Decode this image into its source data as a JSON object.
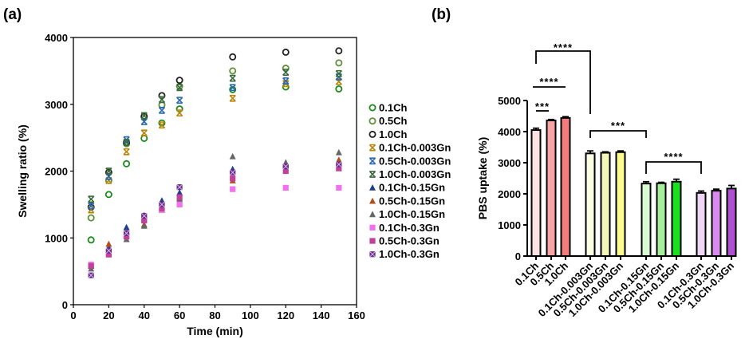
{
  "panels": {
    "a": "(a)",
    "b": "(b)"
  },
  "chart_data": [
    {
      "type": "scatter",
      "xlabel": "Time (min)",
      "ylabel": "Swelling ratio (%)",
      "xlim": [
        0,
        160
      ],
      "ylim": [
        0,
        4000
      ],
      "xticks": [
        0,
        20,
        40,
        60,
        80,
        100,
        120,
        140,
        160
      ],
      "yticks": [
        0,
        1000,
        2000,
        3000,
        4000
      ],
      "grid": false,
      "legend_position": "right",
      "x": [
        10,
        20,
        30,
        40,
        50,
        60,
        90,
        120,
        150
      ],
      "series": [
        {
          "name": "0.1Ch",
          "marker": "open-circle",
          "color": "#1a8a1a",
          "values": [
            970,
            1650,
            2110,
            2490,
            2720,
            2930,
            3220,
            3260,
            3230
          ]
        },
        {
          "name": "0.5Ch",
          "marker": "open-circle",
          "color": "#5f8f3a",
          "values": [
            1300,
            1860,
            2410,
            2810,
            2990,
            3270,
            3500,
            3540,
            3620
          ]
        },
        {
          "name": "1.0Ch",
          "marker": "open-circle",
          "color": "#222222",
          "values": [
            1460,
            1980,
            2430,
            2820,
            3130,
            3360,
            3710,
            3780,
            3800
          ]
        },
        {
          "name": "0.1Ch-0.003Gn",
          "marker": "x",
          "color": "#b8860b",
          "values": [
            1420,
            1860,
            2290,
            2570,
            2690,
            2870,
            3090,
            3310,
            3340
          ]
        },
        {
          "name": "0.5Ch-0.003Gn",
          "marker": "x",
          "color": "#2a6ab0",
          "values": [
            1480,
            1920,
            2470,
            2740,
            2910,
            3060,
            3250,
            3350,
            3410
          ]
        },
        {
          "name": "1.0Ch-0.003Gn",
          "marker": "x",
          "color": "#3a6a3a",
          "values": [
            1580,
            2000,
            2430,
            2830,
            3070,
            3250,
            3390,
            3480,
            3460
          ]
        },
        {
          "name": "0.1Ch-0.15Gn",
          "marker": "triangle",
          "color": "#1f3f8a",
          "values": [
            580,
            860,
            1160,
            1340,
            1560,
            1680,
            2030,
            2090,
            2110
          ]
        },
        {
          "name": "0.5Ch-0.15Gn",
          "marker": "triangle",
          "color": "#b0501a",
          "values": [
            600,
            910,
            1040,
            1200,
            1420,
            1600,
            1860,
            2110,
            2170
          ]
        },
        {
          "name": "1.0Ch-0.15Gn",
          "marker": "triangle",
          "color": "#666666",
          "values": [
            540,
            820,
            980,
            1180,
            1420,
            1580,
            2220,
            2130,
            2280
          ]
        },
        {
          "name": "0.1Ch-0.3Gn",
          "marker": "square",
          "color": "#f070f0",
          "values": [
            600,
            760,
            1020,
            1280,
            1420,
            1500,
            1730,
            1750,
            1750
          ]
        },
        {
          "name": "0.5Ch-0.3Gn",
          "marker": "square",
          "color": "#c0409a",
          "values": [
            580,
            750,
            1020,
            1260,
            1440,
            1610,
            1890,
            2000,
            2040
          ]
        },
        {
          "name": "1.0Ch-0.3Gn",
          "marker": "x-square",
          "color": "#6a2a8a",
          "values": [
            440,
            810,
            1070,
            1330,
            1500,
            1760,
            1980,
            2070,
            2100
          ]
        }
      ]
    },
    {
      "type": "bar",
      "ylabel": "PBS uptake (%)",
      "ylim": [
        0,
        5000
      ],
      "yticks": [
        0,
        1000,
        2000,
        3000,
        4000,
        5000
      ],
      "grid": false,
      "categories": [
        "0.1Ch",
        "0.5Ch",
        "1.0Ch",
        "0.1Ch-0.003Gn",
        "0.5Ch-0.003Gn",
        "1.0Ch-0.003Gn",
        "0.1Ch-0.15Gn",
        "0.5Ch-0.15Gn",
        "1.0Ch-0.15Gn",
        "0.1Ch-0.3Gn",
        "0.5Ch-0.3Gn",
        "1.0Ch-0.3Gn"
      ],
      "values": [
        4050,
        4360,
        4440,
        3300,
        3320,
        3340,
        2330,
        2340,
        2390,
        2030,
        2100,
        2170
      ],
      "errors": [
        60,
        30,
        40,
        80,
        30,
        40,
        60,
        30,
        80,
        60,
        50,
        100
      ],
      "colors": [
        "#fde2e2",
        "#f8a4a4",
        "#f47c7c",
        "#fdfde2",
        "#f5f7b8",
        "#fbfb8e",
        "#dafbd2",
        "#a6f09a",
        "#19e01f",
        "#f0d6f6",
        "#d98aec",
        "#b050d0"
      ],
      "significance": [
        {
          "from": "0.1Ch",
          "to": "0.1Ch-0.003Gn",
          "label": "****"
        },
        {
          "from": "0.1Ch",
          "to": "1.0Ch",
          "label": "****"
        },
        {
          "from": "0.1Ch",
          "to": "0.5Ch",
          "label": "***"
        },
        {
          "from": "0.1Ch-0.003Gn",
          "to": "0.1Ch-0.15Gn",
          "label": "***"
        },
        {
          "from": "0.1Ch-0.15Gn",
          "to": "0.1Ch-0.3Gn",
          "label": "****"
        }
      ]
    }
  ]
}
